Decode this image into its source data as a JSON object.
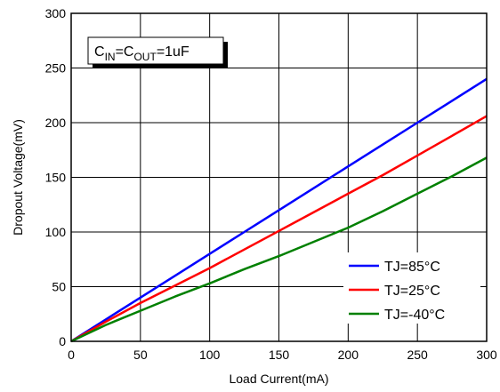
{
  "chart_data": {
    "type": "line",
    "xlabel": "Load Current(mA)",
    "ylabel": "Dropout Voltage(mV)",
    "xlim": [
      0,
      300
    ],
    "ylim": [
      0,
      300
    ],
    "xticks": [
      0,
      50,
      100,
      150,
      200,
      250,
      300
    ],
    "yticks": [
      0,
      50,
      100,
      150,
      200,
      250,
      300
    ],
    "grid": true,
    "legend_position": "bottom-right",
    "annotation": {
      "c1": "C",
      "s1": "IN",
      "eq1": "=C",
      "s2": "OUT",
      "tail": "=1uF"
    },
    "series": [
      {
        "name": "TJ=85°C",
        "color": "#0000ff",
        "x": [
          0,
          25,
          50,
          75,
          100,
          125,
          150,
          175,
          200,
          225,
          250,
          275,
          300
        ],
        "y": [
          0,
          20,
          40,
          60,
          80,
          100,
          120,
          140,
          160,
          180,
          200,
          220,
          240
        ]
      },
      {
        "name": "TJ=25°C",
        "color": "#ff0000",
        "x": [
          0,
          25,
          50,
          75,
          100,
          125,
          150,
          175,
          200,
          225,
          250,
          275,
          300
        ],
        "y": [
          0,
          18,
          35,
          51,
          67,
          84,
          101,
          118,
          135,
          152,
          170,
          188,
          206
        ]
      },
      {
        "name": "TJ=-40°C",
        "color": "#008000",
        "x": [
          0,
          25,
          50,
          75,
          100,
          125,
          150,
          175,
          200,
          225,
          250,
          275,
          300
        ],
        "y": [
          0,
          15,
          28,
          41,
          53,
          66,
          78,
          91,
          104,
          119,
          135,
          151,
          168
        ]
      }
    ]
  }
}
